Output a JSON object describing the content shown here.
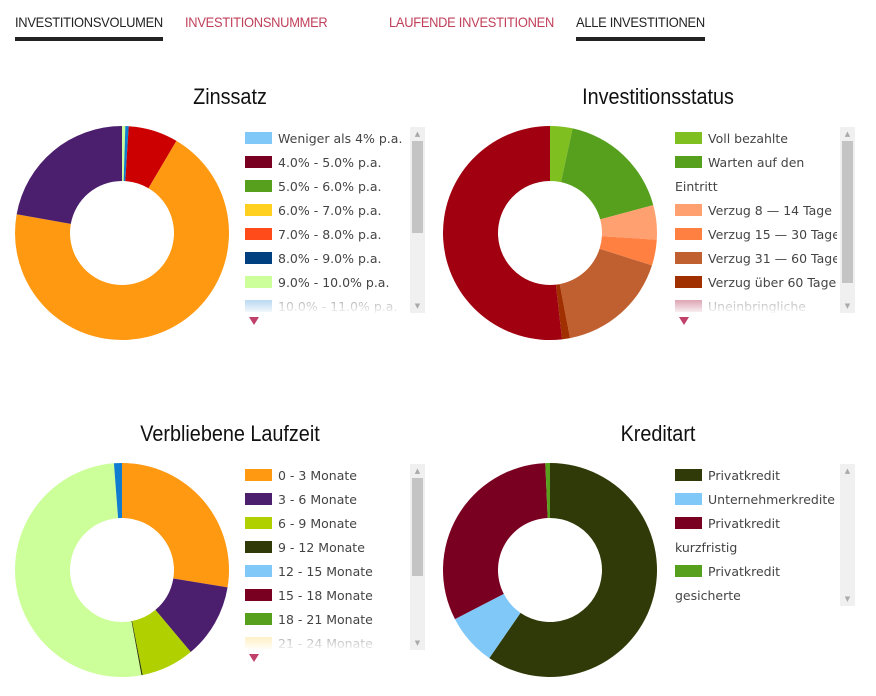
{
  "tabs": [
    {
      "label": "INVESTITIONSVOLUMEN",
      "active": true
    },
    {
      "label": "INVESTITIONSNUMMER",
      "active": false
    },
    {
      "label": "LAUFENDE INVESTITIONEN",
      "active": false
    },
    {
      "label": "ALLE INVESTITIONEN",
      "active": true
    }
  ],
  "chart_data": [
    {
      "type": "pie",
      "title": "Zinssatz",
      "unit": "percent",
      "legend": [
        {
          "label": "Weniger als 4% p.a.",
          "color": "#80c8f8"
        },
        {
          "label": "4.0% - 5.0% p.a.",
          "color": "#7a0022"
        },
        {
          "label": "5.0% - 6.0% p.a.",
          "color": "#56a01e"
        },
        {
          "label": "6.0% - 7.0% p.a.",
          "color": "#ffd020"
        },
        {
          "label": "7.0% - 8.0% p.a.",
          "color": "#ff4a1a"
        },
        {
          "label": "8.0% - 9.0% p.a.",
          "color": "#003f80"
        },
        {
          "label": "9.0% - 10.0% p.a.",
          "color": "#ccff99"
        },
        {
          "label": "10.0% - 11.0% p.a.",
          "color": "#5ea8e0"
        }
      ],
      "slices": [
        {
          "value": 0.5,
          "color": "#ccff99"
        },
        {
          "value": 0.5,
          "color": "#0f7ccf"
        },
        {
          "value": 7.5,
          "color": "#cc0000"
        },
        {
          "value": 69.3,
          "color": "#ff9912"
        },
        {
          "value": 22.2,
          "color": "#4b1e6e"
        }
      ]
    },
    {
      "type": "pie",
      "title": "Investitionsstatus",
      "unit": "percent",
      "legend": [
        {
          "label": "Voll bezahlte",
          "color": "#7fbf1f"
        },
        {
          "label": "Warten auf den",
          "color": "#56a01e",
          "cont": "Eintritt"
        },
        {
          "label": "Verzug 8 — 14 Tage",
          "color": "#ffa070"
        },
        {
          "label": "Verzug 15 — 30 Tage",
          "color": "#ff8040"
        },
        {
          "label": "Verzug 31 — 60 Tage",
          "color": "#c06030"
        },
        {
          "label": "Verzug über 60 Tage",
          "color": "#a03000"
        },
        {
          "label": "Uneinbringliche",
          "color": "#b03050"
        }
      ],
      "slices": [
        {
          "value": 3.4,
          "color": "#7fbf1f"
        },
        {
          "value": 17.4,
          "color": "#56a01e"
        },
        {
          "value": 5.2,
          "color": "#ffa070"
        },
        {
          "value": 3.9,
          "color": "#ff8040"
        },
        {
          "value": 17.1,
          "color": "#c06030"
        },
        {
          "value": 1.2,
          "color": "#a03000"
        },
        {
          "value": 51.8,
          "color": "#a00010"
        }
      ]
    },
    {
      "type": "pie",
      "title": "Verbliebene Laufzeit",
      "unit": "percent",
      "legend": [
        {
          "label": "0 - 3 Monate",
          "color": "#ff9912"
        },
        {
          "label": "3 - 6 Monate",
          "color": "#4b1e6e"
        },
        {
          "label": "6 - 9 Monate",
          "color": "#b0d000"
        },
        {
          "label": "9 - 12 Monate",
          "color": "#2f3a08"
        },
        {
          "label": "12 - 15 Monate",
          "color": "#80c8f8"
        },
        {
          "label": "15 - 18 Monate",
          "color": "#7a0022"
        },
        {
          "label": "18 - 21 Monate",
          "color": "#56a01e"
        },
        {
          "label": "21 - 24 Monate",
          "color": "#ffe080"
        }
      ],
      "slices": [
        {
          "value": 27.6,
          "color": "#ff9912"
        },
        {
          "value": 11.3,
          "color": "#4b1e6e"
        },
        {
          "value": 8.0,
          "color": "#b0d000"
        },
        {
          "value": 0.2,
          "color": "#2f3a08"
        },
        {
          "value": 51.7,
          "color": "#ccff99"
        },
        {
          "value": 1.2,
          "color": "#0f7ccf"
        }
      ]
    },
    {
      "type": "pie",
      "title": "Kreditart",
      "unit": "percent",
      "legend": [
        {
          "label": "Privatkredit",
          "color": "#2f3a08"
        },
        {
          "label": "Unternehmerkredite",
          "color": "#80c8f8"
        },
        {
          "label": "Privatkredit",
          "color": "#7a0022",
          "cont": "kurzfristig"
        },
        {
          "label": "Privatkredit",
          "color": "#56a01e",
          "cont": "gesicherte"
        }
      ],
      "slices": [
        {
          "value": 59.6,
          "color": "#2f3a08"
        },
        {
          "value": 7.8,
          "color": "#80c8f8"
        },
        {
          "value": 31.9,
          "color": "#7a0022"
        },
        {
          "value": 0.7,
          "color": "#56a01e"
        }
      ]
    }
  ]
}
